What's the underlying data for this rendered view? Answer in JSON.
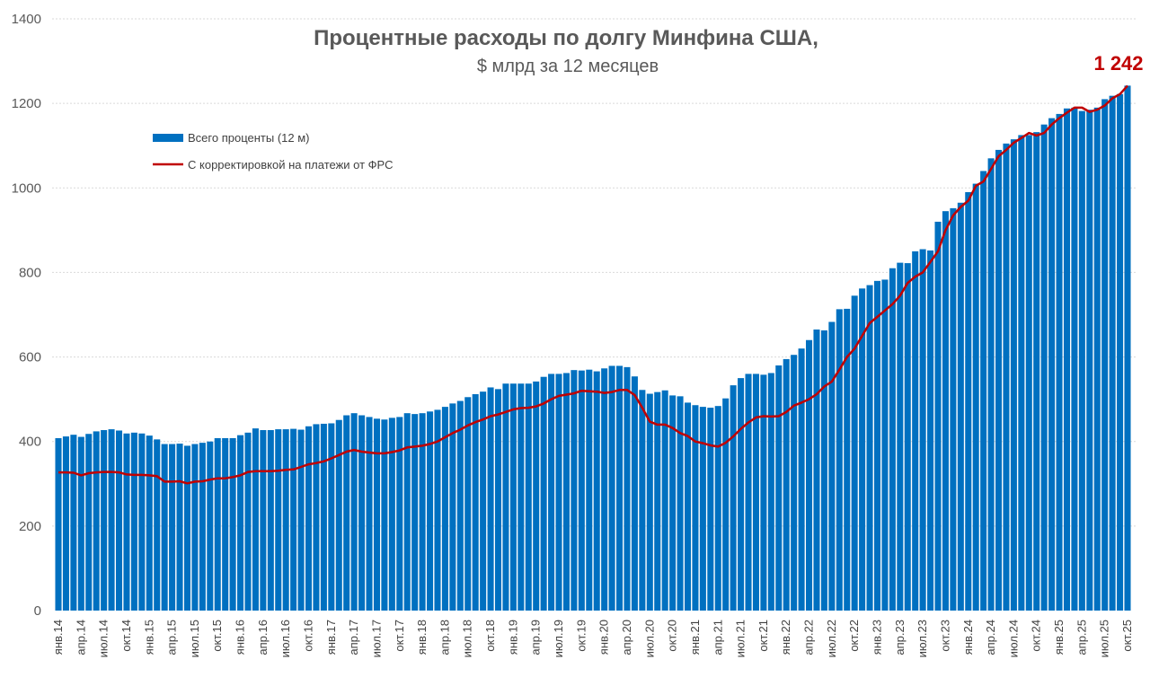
{
  "chart_data": {
    "type": "bar",
    "title": "Процентные расходы по долгу Минфина США,",
    "subtitle": "$ млрд за 12 месяцев",
    "xlabel": "",
    "ylabel": "",
    "ylim": [
      0,
      1400
    ],
    "yticks": [
      0,
      200,
      400,
      600,
      800,
      1000,
      1200,
      1400
    ],
    "grid": true,
    "legend_position": "top-left",
    "last_value_label": "1 242",
    "colors": {
      "bars": "#0070C0",
      "line": "#C00000",
      "last_label": "#C00000"
    },
    "x_start": "2014-01",
    "x_end": "2025-10",
    "x_tick_labels": [
      "янв.14",
      "апр.14",
      "июл.14",
      "окт.14",
      "янв.15",
      "апр.15",
      "июл.15",
      "окт.15",
      "янв.16",
      "апр.16",
      "июл.16",
      "окт.16",
      "янв.17",
      "апр.17",
      "июл.17",
      "окт.17",
      "янв.18",
      "апр.18",
      "июл.18",
      "окт.18",
      "янв.19",
      "апр.19",
      "июл.19",
      "окт.19",
      "янв.20",
      "апр.20",
      "июл.20",
      "окт.20",
      "янв.21",
      "апр.21",
      "июл.21",
      "окт.21",
      "янв.22",
      "апр.22",
      "июл.22",
      "окт.22",
      "янв.23",
      "апр.23",
      "июл.23",
      "окт.23",
      "янв.24",
      "апр.24",
      "июл.24",
      "окт.24",
      "янв.25",
      "апр.25",
      "июл.25",
      "окт.25"
    ],
    "series": [
      {
        "name": "Всего проценты (12 м)",
        "type": "bar",
        "values": [
          408,
          412,
          416,
          411,
          418,
          424,
          427,
          429,
          426,
          419,
          421,
          419,
          414,
          405,
          394,
          394,
          395,
          390,
          394,
          397,
          400,
          408,
          408,
          408,
          415,
          421,
          431,
          427,
          427,
          429,
          429,
          430,
          428,
          436,
          441,
          442,
          443,
          451,
          462,
          467,
          462,
          458,
          454,
          452,
          456,
          458,
          467,
          465,
          467,
          471,
          475,
          482,
          490,
          496,
          505,
          512,
          518,
          528,
          524,
          537,
          537,
          537,
          537,
          542,
          553,
          560,
          560,
          562,
          569,
          568,
          570,
          566,
          573,
          579,
          579,
          576,
          554,
          522,
          513,
          517,
          521,
          509,
          507,
          492,
          486,
          482,
          480,
          484,
          502,
          533,
          550,
          560,
          560,
          558,
          562,
          580,
          595,
          605,
          620,
          640,
          665,
          663,
          683,
          713,
          714,
          745,
          762,
          770,
          780,
          783,
          810,
          823,
          822,
          850,
          855,
          852,
          920,
          945,
          952,
          965,
          990,
          1010,
          1040,
          1070,
          1090,
          1105,
          1115,
          1125,
          1125,
          1132,
          1150,
          1165,
          1175,
          1188,
          1190,
          1182,
          1185,
          1190,
          1210,
          1218,
          1222,
          1242
        ]
      },
      {
        "name": "С корректировкой на платежи от ФРС",
        "type": "line",
        "values": [
          327,
          327,
          326,
          320,
          325,
          327,
          328,
          328,
          327,
          322,
          321,
          321,
          320,
          318,
          305,
          305,
          306,
          301,
          305,
          306,
          310,
          313,
          313,
          316,
          320,
          328,
          330,
          330,
          330,
          331,
          333,
          334,
          340,
          346,
          349,
          353,
          360,
          368,
          376,
          380,
          376,
          374,
          372,
          372,
          375,
          379,
          386,
          388,
          390,
          394,
          400,
          410,
          420,
          428,
          438,
          446,
          452,
          460,
          464,
          470,
          476,
          479,
          480,
          483,
          490,
          500,
          508,
          511,
          514,
          520,
          519,
          518,
          515,
          517,
          522,
          522,
          510,
          480,
          447,
          440,
          440,
          432,
          420,
          413,
          400,
          396,
          391,
          388,
          397,
          412,
          430,
          445,
          457,
          460,
          459,
          460,
          470,
          485,
          492,
          500,
          512,
          530,
          542,
          570,
          600,
          620,
          650,
          680,
          695,
          710,
          725,
          745,
          775,
          790,
          800,
          825,
          850,
          900,
          935,
          955,
          970,
          1005,
          1015,
          1045,
          1075,
          1090,
          1107,
          1118,
          1130,
          1124,
          1130,
          1150,
          1165,
          1178,
          1190,
          1190,
          1180,
          1185,
          1195,
          1212,
          1222,
          1242
        ]
      }
    ]
  }
}
